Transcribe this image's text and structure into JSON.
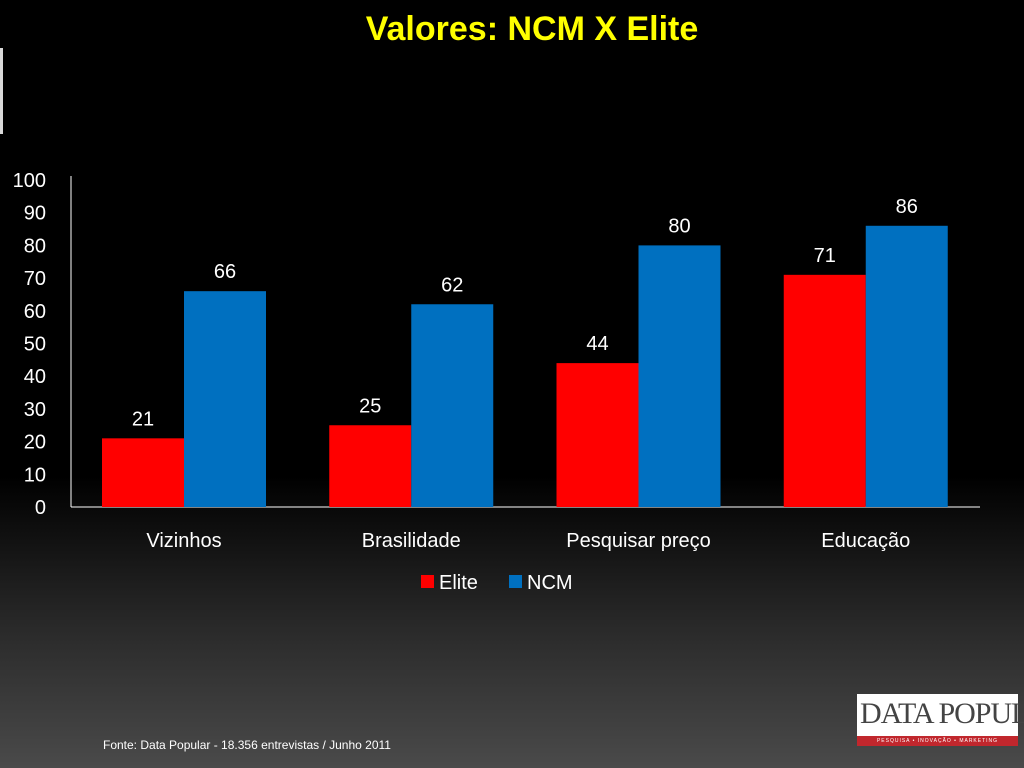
{
  "slide": {
    "title": "Valores: NCM X Elite",
    "footer": "Fonte: Data Popular  - 18.356 entrevistas / Junho 2011"
  },
  "logo": {
    "brand": "DATA POPULAR",
    "tagline": "PESQUISA • INOVAÇÃO • MARKETING"
  },
  "chart_data": {
    "type": "bar",
    "title": "",
    "xlabel": "",
    "ylabel": "",
    "ylim": [
      0,
      100
    ],
    "yticks": [
      0,
      10,
      20,
      30,
      40,
      50,
      60,
      70,
      80,
      90,
      100
    ],
    "categories": [
      "Vizinhos",
      "Brasilidade",
      "Pesquisar preço",
      "Educação"
    ],
    "series": [
      {
        "name": "Elite",
        "color": "#ff0000",
        "values": [
          21,
          25,
          44,
          71
        ]
      },
      {
        "name": "NCM",
        "color": "#0070c0",
        "values": [
          66,
          62,
          80,
          86
        ]
      }
    ],
    "legend": "bottom",
    "grid": false
  }
}
